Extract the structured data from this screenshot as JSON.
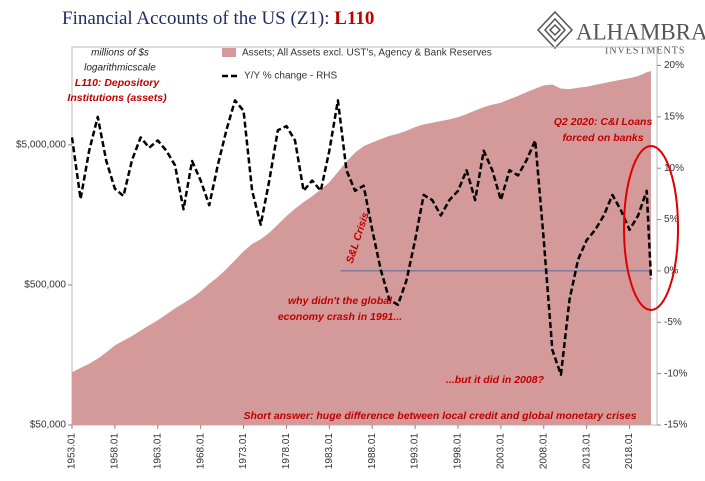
{
  "chart_data": {
    "type": "area_line_dual",
    "title": "Financial Accounts of the US (Z1): ",
    "title_highlight": "L110",
    "logo": {
      "name": "ALHAMBRA",
      "tagline": "INVESTMENTS"
    },
    "annotations": [
      "millions of $s",
      "logarithmicscale",
      "L110: Depository",
      "Institutions (assets)",
      "S&L Crisis",
      "why didn't the global",
      "economy crash in 1991...",
      "...but it did in 2008?",
      "Q2 2020: C&I Loans",
      "forced on banks",
      "Short answer: huge difference between local credit and global monetary crises"
    ],
    "x": [
      1953,
      1954,
      1955,
      1956,
      1957,
      1958,
      1959,
      1960,
      1961,
      1962,
      1963,
      1964,
      1965,
      1966,
      1967,
      1968,
      1969,
      1970,
      1971,
      1972,
      1973,
      1974,
      1975,
      1976,
      1977,
      1978,
      1979,
      1980,
      1981,
      1982,
      1983,
      1984,
      1985,
      1986,
      1987,
      1988,
      1989,
      1990,
      1991,
      1992,
      1993,
      1994,
      1995,
      1996,
      1997,
      1998,
      1999,
      2000,
      2001,
      2002,
      2003,
      2004,
      2005,
      2006,
      2007,
      2008,
      2009,
      2010,
      2011,
      2012,
      2013,
      2014,
      2015,
      2016,
      2017,
      2018,
      2019,
      2020,
      2020.5
    ],
    "xlim": [
      1953,
      2021.2
    ],
    "xticks": [
      {
        "value": 1953,
        "label": "1953.01"
      },
      {
        "value": 1958,
        "label": "1958.01"
      },
      {
        "value": 1963,
        "label": "1963.01"
      },
      {
        "value": 1968,
        "label": "1968.01"
      },
      {
        "value": 1973,
        "label": "1973.01"
      },
      {
        "value": 1978,
        "label": "1978.01"
      },
      {
        "value": 1983,
        "label": "1983.01"
      },
      {
        "value": 1988,
        "label": "1988.01"
      },
      {
        "value": 1993,
        "label": "1993.01"
      },
      {
        "value": 1998,
        "label": "1998.01"
      },
      {
        "value": 2003,
        "label": "2003.01"
      },
      {
        "value": 2008,
        "label": "2008.01"
      },
      {
        "value": 2013,
        "label": "2013.01"
      },
      {
        "value": 2018,
        "label": "2018.01"
      }
    ],
    "ylim": [
      50000,
      25000000
    ],
    "log_scale": true,
    "yticks": [
      {
        "value": 50000,
        "label": "$50,000"
      },
      {
        "value": 500000,
        "label": "$500,000"
      },
      {
        "value": 5000000,
        "label": "$5,000,000"
      }
    ],
    "y2lim": [
      -15,
      21.8
    ],
    "y2ticks": [
      {
        "value": 20,
        "label": "20%"
      },
      {
        "value": 15,
        "label": "15%"
      },
      {
        "value": 10,
        "label": "10%"
      },
      {
        "value": 5,
        "label": "5%"
      },
      {
        "value": 0,
        "label": "0%"
      },
      {
        "value": -5,
        "label": "-5%"
      },
      {
        "value": -10,
        "label": "-10%"
      },
      {
        "value": -15,
        "label": "-15%"
      }
    ],
    "reference_line": {
      "y2": 0,
      "x": [
        1984.3,
        2020.5
      ],
      "color": "#4a6fa5"
    },
    "series": [
      {
        "name": "Assets; All Assets excl. UST's, Agency & Bank Reserves",
        "color": "#d49a99",
        "kind": "area",
        "values": [
          119000,
          128000,
          137000,
          149000,
          165000,
          185000,
          200000,
          216000,
          236000,
          258000,
          280000,
          308000,
          340000,
          370000,
          405000,
          450000,
          510000,
          570000,
          650000,
          750000,
          870000,
          980000,
          1060000,
          1180000,
          1350000,
          1550000,
          1750000,
          1950000,
          2150000,
          2400000,
          2700000,
          3200000,
          3800000,
          4400000,
          4900000,
          5200000,
          5500000,
          5800000,
          6000000,
          6300000,
          6700000,
          7000000,
          7200000,
          7400000,
          7600000,
          7900000,
          8300000,
          8800000,
          9300000,
          9700000,
          10000000,
          10600000,
          11200000,
          11900000,
          12600000,
          13300000,
          13500000,
          12600000,
          12500000,
          12800000,
          13000000,
          13400000,
          13800000,
          14200000,
          14600000,
          15000000,
          15500000,
          16500000,
          16800000
        ]
      },
      {
        "name": "Y/Y % change - RHS",
        "color": "#000000",
        "kind": "dashed-line",
        "axis": "y2",
        "values": [
          13,
          7,
          11.7,
          15,
          10.7,
          8,
          7.3,
          10.8,
          13,
          12,
          12.7,
          11.7,
          10.3,
          6,
          10.7,
          8.8,
          6.4,
          10.3,
          13.7,
          16.6,
          15.6,
          7.8,
          4.5,
          8.8,
          13.7,
          14.1,
          12.7,
          7.8,
          8.8,
          7.8,
          11.7,
          16.6,
          9.8,
          7.8,
          8.3,
          4,
          0.1,
          -2.8,
          -3.3,
          -0.9,
          3,
          7.4,
          6.9,
          5.4,
          6.9,
          7.8,
          9.8,
          6.9,
          11.7,
          9.8,
          6.9,
          9.8,
          9.3,
          10.8,
          12.7,
          3,
          -7.7,
          -10.1,
          -2.8,
          1.1,
          3,
          4,
          5.4,
          7.4,
          5.9,
          4,
          5.4,
          7.8,
          -0.8
        ]
      }
    ]
  }
}
